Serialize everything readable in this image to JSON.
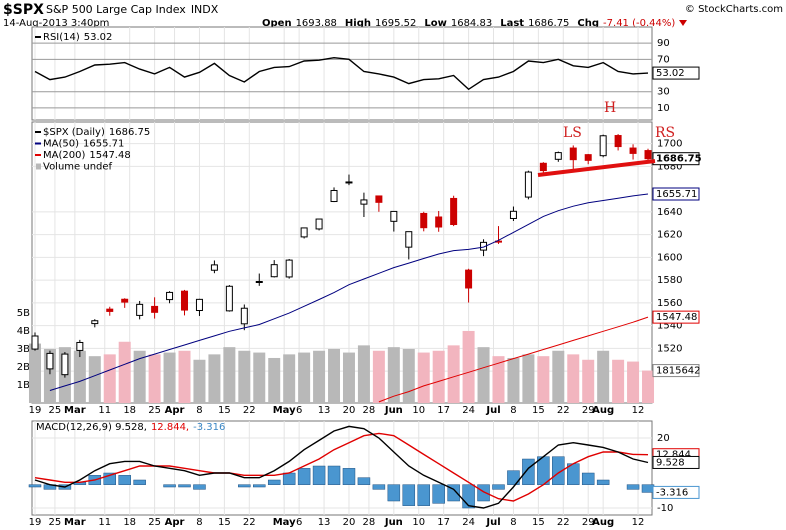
{
  "header": {
    "symbol": "$SPX",
    "name": "S&P 500 Large Cap Index",
    "exchange": "INDX",
    "date": "14-Aug-2013 3:40pm",
    "source": "© StockCharts.com",
    "quote": [
      {
        "label": "Open",
        "value": "1693.88"
      },
      {
        "label": "High",
        "value": "1695.52"
      },
      {
        "label": "Low",
        "value": "1684.83"
      },
      {
        "label": "Last",
        "value": "1686.75"
      },
      {
        "label": "Chg",
        "value": "-7.41 (-0.44%)"
      }
    ]
  },
  "chart_data": [
    {
      "type": "line",
      "ylim": [
        -5,
        110
      ],
      "yticks": [
        10,
        30,
        70,
        90
      ],
      "grid": true,
      "series": [
        {
          "name": "RSI(14)",
          "color": "#000000",
          "last_label": "53.02",
          "values": [
            55,
            45,
            48,
            55,
            63,
            64,
            66,
            58,
            52,
            60,
            48,
            54,
            65,
            50,
            42,
            55,
            60,
            61,
            68,
            69,
            72,
            70,
            55,
            52,
            48,
            40,
            45,
            46,
            50,
            33,
            45,
            48,
            55,
            68,
            66,
            70,
            62,
            60,
            66,
            55,
            52,
            53.02
          ]
        }
      ]
    },
    {
      "type": "candlestick",
      "x": [
        0,
        3,
        6,
        9,
        12,
        15,
        18,
        21,
        24,
        27,
        30,
        33,
        36,
        39,
        42,
        45,
        48,
        51,
        54,
        57,
        60,
        63,
        66,
        69,
        72,
        75,
        78,
        81,
        84,
        87,
        90,
        93,
        96,
        99,
        102,
        105,
        108,
        111,
        114,
        117,
        120,
        123
      ],
      "xlim": [
        -0.6,
        123.8
      ],
      "xticks": [
        {
          "value": 0,
          "label": "19"
        },
        {
          "value": 4,
          "label": "25"
        },
        {
          "value": 8,
          "label": "Mar"
        },
        {
          "value": 14,
          "label": "11"
        },
        {
          "value": 19,
          "label": "18"
        },
        {
          "value": 24,
          "label": "25"
        },
        {
          "value": 28,
          "label": "Apr"
        },
        {
          "value": 33,
          "label": "8"
        },
        {
          "value": 38,
          "label": "15"
        },
        {
          "value": 43,
          "label": "22"
        },
        {
          "value": 50,
          "label": "May"
        },
        {
          "value": 53,
          "label": "6"
        },
        {
          "value": 58,
          "label": "13"
        },
        {
          "value": 63,
          "label": "20"
        },
        {
          "value": 67,
          "label": "28"
        },
        {
          "value": 72,
          "label": "Jun"
        },
        {
          "value": 77,
          "label": "10"
        },
        {
          "value": 82,
          "label": "17"
        },
        {
          "value": 87,
          "label": "24"
        },
        {
          "value": 92,
          "label": "Jul"
        },
        {
          "value": 96,
          "label": "8"
        },
        {
          "value": 101,
          "label": "15"
        },
        {
          "value": 106,
          "label": "22"
        },
        {
          "value": 111,
          "label": "29"
        },
        {
          "value": 114,
          "label": "Aug"
        },
        {
          "value": 121,
          "label": "12"
        }
      ],
      "ylim": [
        1472,
        1719
      ],
      "yticks": [
        1500,
        1520,
        1540,
        1560,
        1580,
        1600,
        1620,
        1640,
        1680,
        1700
      ],
      "grid": true,
      "y2lim": [
        0,
        15.6
      ],
      "y2ticks": [
        {
          "value": 1,
          "label": "1B"
        },
        {
          "value": 2,
          "label": "2B"
        },
        {
          "value": 3,
          "label": "3B"
        },
        {
          "value": 4,
          "label": "4B"
        },
        {
          "value": 5,
          "label": "5B"
        }
      ],
      "annotations": [
        "LS",
        "H",
        "RS"
      ],
      "series": [
        {
          "name": "$SPX (Daily)",
          "type": "candlestick",
          "last_label": "1686.75",
          "up_color": "#000000",
          "down_color": "#cc0000",
          "open": [
            1519.4,
            1502.0,
            1496.9,
            1518.2,
            1541.8,
            1554.5,
            1563.2,
            1549.0,
            1556.9,
            1562.9,
            1570.3,
            1553.3,
            1588.7,
            1553.0,
            1541.6,
            1578.3,
            1583.0,
            1582.8,
            1618.0,
            1625.0,
            1649.1,
            1665.7,
            1646.8,
            1654.0,
            1631.7,
            1609.0,
            1638.6,
            1635.5,
            1651.8,
            1588.8,
            1606.4,
            1614.3,
            1634.2,
            1653.0,
            1682.7,
            1686.2,
            1696.1,
            1690.3,
            1689.4,
            1707.1,
            1696.1,
            1693.88
          ],
          "high": [
            1534.0,
            1518.0,
            1516.8,
            1527.5,
            1545.7,
            1556.6,
            1564.1,
            1561.7,
            1564.9,
            1570.3,
            1571.4,
            1563.6,
            1597.3,
            1575.7,
            1558.6,
            1585.8,
            1597.6,
            1598.6,
            1626.0,
            1633.7,
            1661.5,
            1672.8,
            1656.9,
            1654.2,
            1640.4,
            1622.7,
            1640.1,
            1640.8,
            1654.2,
            1590.0,
            1615.9,
            1627.5,
            1644.7,
            1676.2,
            1683.7,
            1693.0,
            1698.4,
            1690.9,
            1707.9,
            1708.4,
            1699.4,
            1695.52
          ],
          "low": [
            1518.0,
            1497.3,
            1494.3,
            1512.4,
            1538.5,
            1548.7,
            1555.6,
            1545.5,
            1546.2,
            1559.7,
            1549.0,
            1548.5,
            1586.1,
            1552.3,
            1536.0,
            1575.0,
            1582.3,
            1581.3,
            1616.6,
            1623.7,
            1648.6,
            1663.5,
            1635.5,
            1640.1,
            1622.7,
            1598.2,
            1622.9,
            1622.5,
            1627.5,
            1560.3,
            1601.1,
            1611.8,
            1632.0,
            1651.0,
            1671.8,
            1684.0,
            1676.0,
            1681.9,
            1688.0,
            1694.0,
            1686.0,
            1684.83
          ],
          "close": [
            1530.9,
            1515.6,
            1515.0,
            1525.2,
            1544.3,
            1552.5,
            1560.7,
            1558.7,
            1551.7,
            1569.2,
            1553.7,
            1563.1,
            1593.4,
            1574.6,
            1555.3,
            1578.8,
            1593.6,
            1597.6,
            1625.9,
            1633.7,
            1658.8,
            1666.3,
            1650.5,
            1648.4,
            1640.4,
            1622.6,
            1626.1,
            1626.7,
            1628.9,
            1573.1,
            1613.2,
            1614.1,
            1640.5,
            1675.0,
            1676.3,
            1692.1,
            1685.9,
            1685.3,
            1706.9,
            1697.4,
            1691.4,
            1686.75
          ]
        },
        {
          "name": "MA(50)",
          "type": "line",
          "color": "#00007f",
          "last_label": "1655.71",
          "values": [
            null,
            1483,
            1487,
            1491,
            1496,
            1501,
            1506,
            1511,
            1515,
            1519,
            1523,
            1527,
            1531,
            1535,
            1538,
            1541,
            1546,
            1551,
            1557,
            1563,
            1569,
            1576,
            1581,
            1586,
            1591,
            1595,
            1599,
            1603,
            1606,
            1607,
            1609,
            1615,
            1622,
            1629,
            1636,
            1641,
            1645,
            1648,
            1650,
            1652,
            1654,
            1655.71
          ]
        },
        {
          "name": "MA(200)",
          "type": "line",
          "color": "#e00000",
          "last_label": "1547.48",
          "values": [
            null,
            null,
            null,
            null,
            null,
            null,
            null,
            null,
            null,
            null,
            null,
            null,
            null,
            null,
            null,
            null,
            null,
            null,
            null,
            null,
            null,
            null,
            null,
            1473,
            1478,
            1482,
            1487,
            1491,
            1495,
            1499,
            1503,
            1507,
            1511,
            1515,
            1519,
            1523,
            1527,
            1531,
            1535,
            1539,
            1543,
            1547.48
          ]
        },
        {
          "name": "Volume undef",
          "type": "bar",
          "axis": "y2",
          "last_label": "1815642",
          "up_color": "#b8b8b8",
          "down_color": "#f2b5bf",
          "values": [
            3.3,
            3.0,
            3.1,
            2.9,
            2.6,
            2.7,
            3.4,
            2.9,
            2.7,
            2.8,
            2.9,
            2.4,
            2.7,
            3.1,
            2.9,
            2.8,
            2.5,
            2.7,
            2.8,
            2.9,
            3.0,
            2.8,
            3.2,
            2.9,
            3.1,
            3.0,
            2.8,
            2.9,
            3.2,
            4.0,
            3.1,
            2.6,
            2.5,
            2.7,
            2.6,
            2.9,
            2.7,
            2.4,
            2.9,
            2.4,
            2.3,
            1.8
          ]
        }
      ]
    },
    {
      "type": "line",
      "ylim": [
        -13,
        27.3
      ],
      "yticks": [
        -10,
        20
      ],
      "grid": true,
      "legend": [
        {
          "text": "MACD(12,26,9) 9.528,",
          "color": "#000000"
        },
        {
          "text": "12.844,",
          "color": "#e00000"
        },
        {
          "text": "-3.316",
          "color": "#3a86c4"
        }
      ],
      "series": [
        {
          "type": "bar",
          "color": "#4a96d0",
          "last_label": "-3.316",
          "values": [
            -1,
            -2,
            -2,
            1,
            4,
            5,
            4,
            2,
            0,
            -1,
            -1,
            -2,
            0,
            0,
            -1,
            -1,
            2,
            5,
            7,
            8,
            8,
            7,
            3,
            -2,
            -7,
            -9,
            -9,
            -8,
            -7,
            -10,
            -7,
            -2,
            6,
            11,
            12,
            12,
            9,
            5,
            2,
            0,
            -2,
            -3.316
          ]
        },
        {
          "type": "line",
          "color": "#e00000",
          "last_label": "12.844",
          "values": [
            3,
            2,
            1,
            1,
            2,
            4,
            6,
            8,
            8,
            8,
            7,
            6,
            5,
            5,
            4,
            4,
            4,
            5,
            8,
            11,
            15,
            18,
            21,
            22,
            21,
            17,
            13,
            9,
            5,
            1,
            -3,
            -6,
            -7,
            -4,
            0,
            5,
            9,
            12,
            14,
            14,
            13,
            12.844
          ]
        },
        {
          "type": "line",
          "color": "#000000",
          "last_label": "9.528",
          "values": [
            2,
            0,
            -1,
            2,
            6,
            9,
            10,
            10,
            8,
            7,
            6,
            4,
            5,
            5,
            3,
            3,
            6,
            10,
            15,
            19,
            23,
            25,
            24,
            20,
            14,
            8,
            4,
            1,
            -2,
            -9,
            -10,
            -8,
            -1,
            7,
            12,
            17,
            18,
            17,
            16,
            14,
            11,
            9.528
          ]
        }
      ]
    }
  ]
}
